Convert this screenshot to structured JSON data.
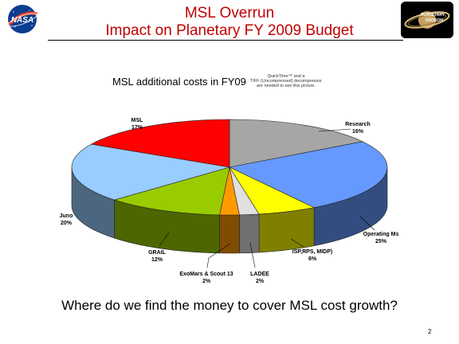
{
  "slide": {
    "title_line1": "MSL Overrun",
    "title_line2": "Impact on Planetary FY 2009 Budget",
    "chart_title": "MSL additional costs in FY09",
    "quicktime_line1": "QuickTime™ and a",
    "quicktime_line2": "TIFF (Uncompressed) decompressor",
    "quicktime_line3": "are needed to see this picture.",
    "question": "Where do we find the money to cover MSL cost growth?",
    "page_number": "2",
    "logo_nasa_text": "NASA",
    "logo_pd_line1": "PLANETARY",
    "logo_pd_line2": "DIVISION"
  },
  "chart_data": {
    "type": "pie",
    "title": "MSL additional costs in FY09",
    "slices": [
      {
        "name": "Research",
        "pct_label": "16%",
        "value": 16,
        "color": "#a6a6a6"
      },
      {
        "name": "Operating Ms",
        "pct_label": "25%",
        "value": 25,
        "color": "#6699ff"
      },
      {
        "name": "ISP,RPS, MIDP)",
        "pct_label": "6%",
        "value": 6,
        "color": "#ffff00"
      },
      {
        "name": "LADEE",
        "pct_label": "2%",
        "value": 2,
        "color": "#e0e0e0"
      },
      {
        "name": "ExoMars & Scout 13",
        "pct_label": "2%",
        "value": 2,
        "color": "#ff9900"
      },
      {
        "name": "GRAIL",
        "pct_label": "12%",
        "value": 12,
        "color": "#99cc00"
      },
      {
        "name": "Juno",
        "pct_label": "20%",
        "value": 20,
        "color": "#99ccff"
      },
      {
        "name": "MSL",
        "pct_label": "17%",
        "value": 17,
        "color": "#ff0000"
      }
    ],
    "style": "3d"
  }
}
